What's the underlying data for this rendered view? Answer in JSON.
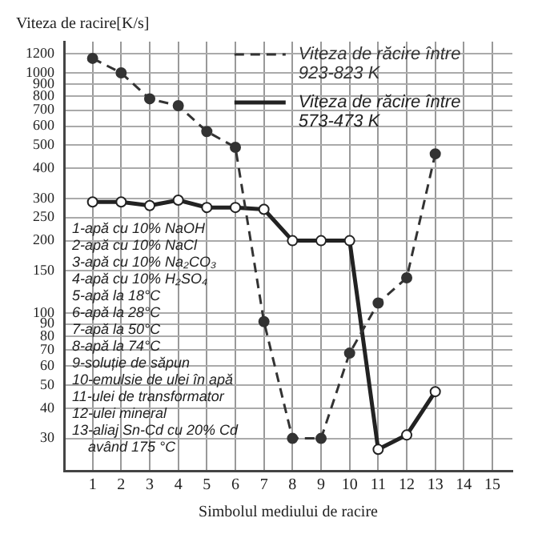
{
  "chart_data": {
    "type": "line",
    "xlabel": "Simbolul mediului de racire",
    "ylabel": "Viteza de racire[K/s]",
    "x": [
      1,
      2,
      3,
      4,
      5,
      6,
      7,
      8,
      9,
      10,
      11,
      12,
      13
    ],
    "series": [
      {
        "name": "Viteza de răcire între 923-823 K",
        "color": "#333333",
        "line_style": "dashed",
        "values": [
          1150,
          1000,
          780,
          730,
          570,
          490,
          92,
          30,
          30,
          68,
          110,
          140,
          460
        ]
      },
      {
        "name": "Viteza de răcire între 573-473 K",
        "color": "#222222",
        "line_style": "solid",
        "values": [
          290,
          290,
          280,
          295,
          275,
          275,
          270,
          200,
          200,
          200,
          27,
          31,
          47
        ]
      }
    ],
    "log": true,
    "xlim": [
      0,
      15.7
    ],
    "xticks": [
      1,
      2,
      3,
      4,
      5,
      6,
      7,
      8,
      9,
      10,
      11,
      12,
      13,
      14,
      15
    ],
    "ylim": [
      22,
      1350
    ],
    "yticks": [
      30,
      40,
      50,
      60,
      70,
      80,
      90,
      100,
      150,
      200,
      250,
      300,
      400,
      500,
      600,
      700,
      800,
      900,
      1000,
      1200
    ],
    "grid": true,
    "legend": "top right",
    "marker": "circle",
    "annotations": [
      "1-apă cu 10% NaOH",
      "2-apă cu 10% NaCl",
      "3-apă cu 10% Na₂CO₃",
      "4-apă cu 10% H₂SO₄",
      "5-apă la 18°C",
      "6-apă la 28°C",
      "7-apă la 50°C",
      "8-apă la 74°C",
      "9-soluție de săpun",
      "10-emulsie de ulei în apă",
      "11-ulei de transformator",
      "12-ulei mineral",
      "13-aliaj Sn-Cd cu 20% Cd având 175 °C"
    ]
  }
}
